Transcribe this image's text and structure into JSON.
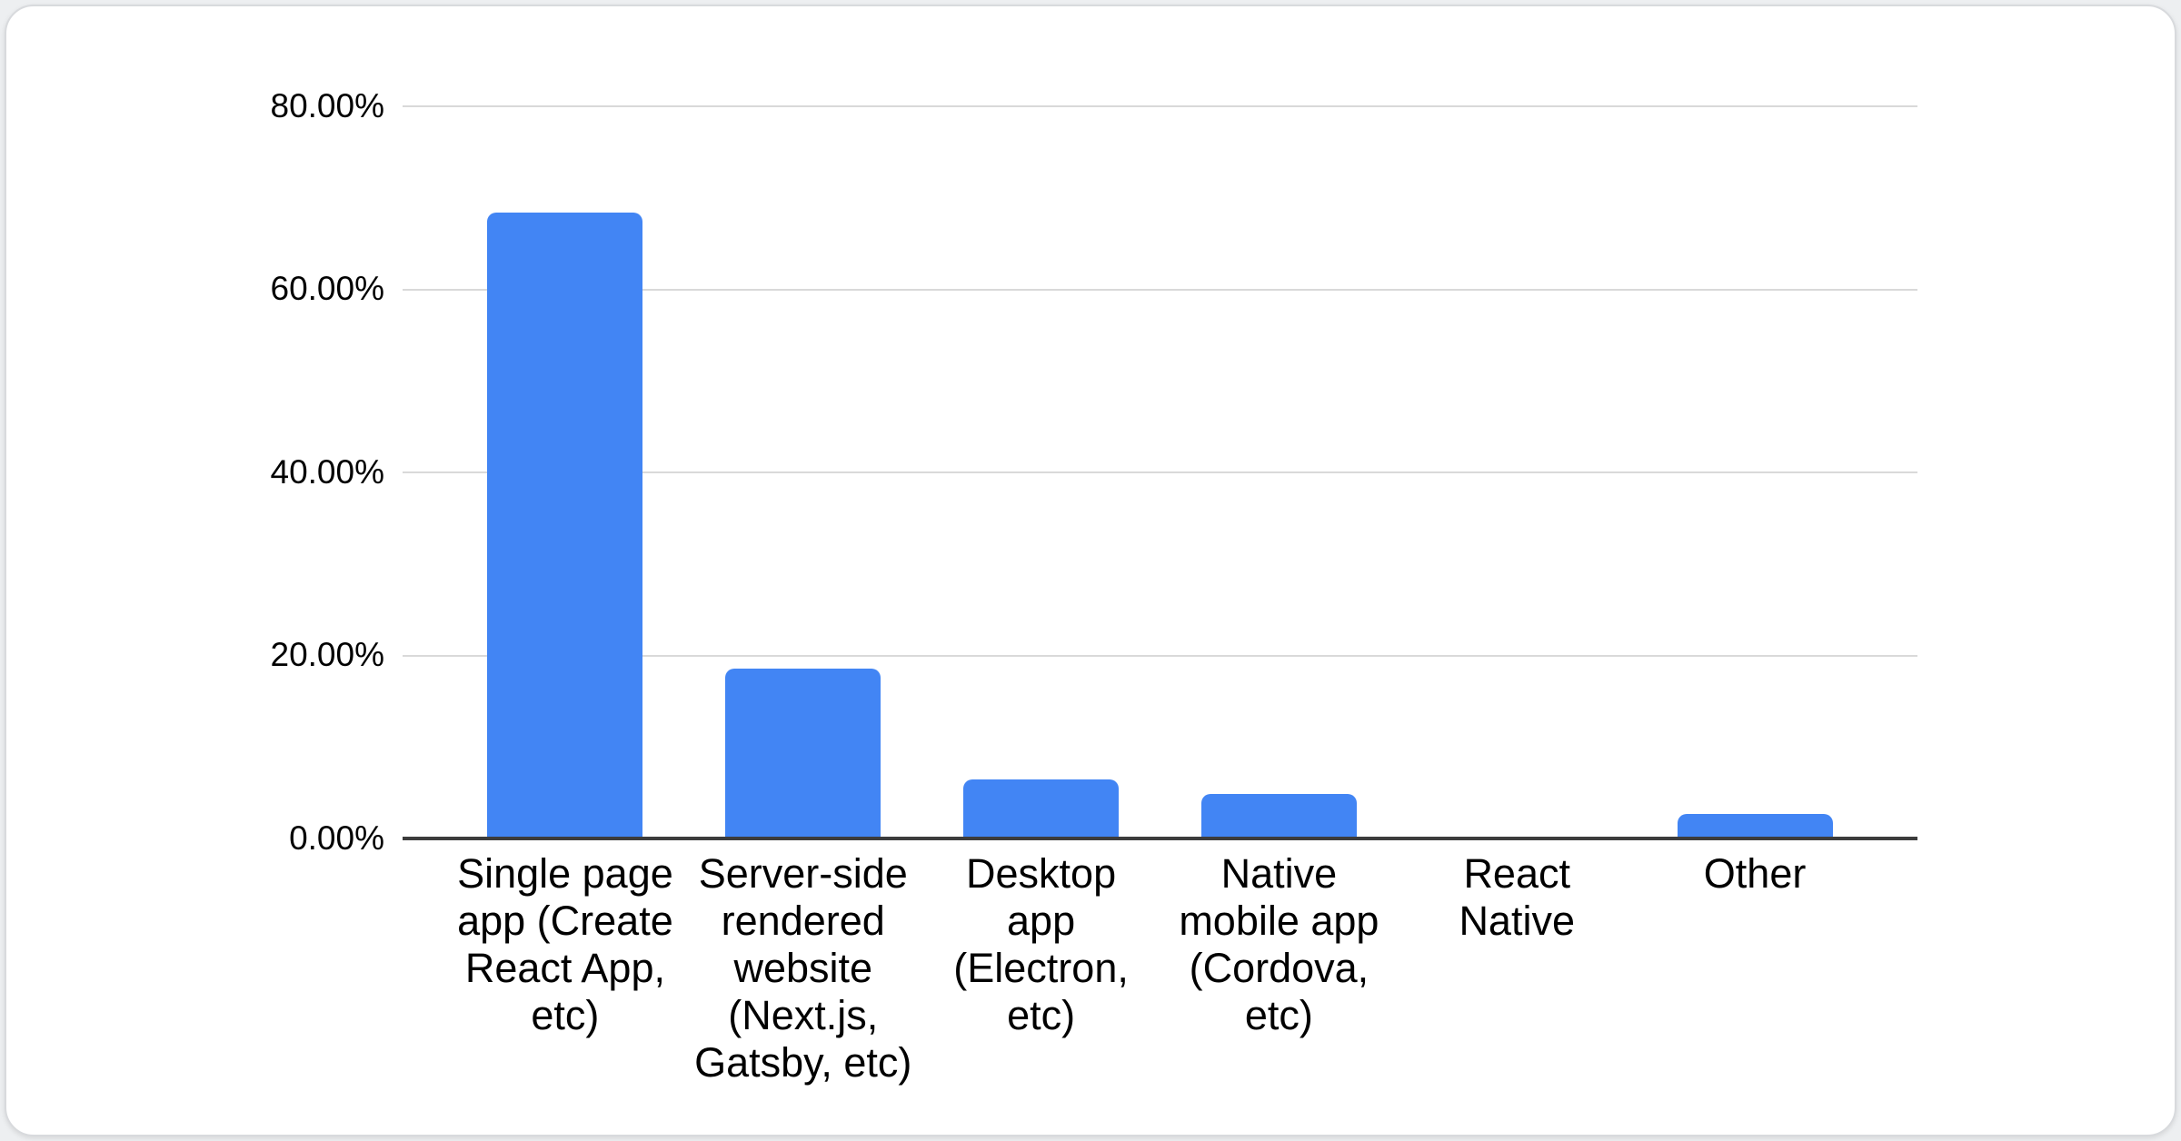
{
  "chart_data": {
    "type": "bar",
    "title": "",
    "categories": [
      "Single page app (Create React App, etc)",
      "Server-side rendered website (Next.js, Gatsby, etc)",
      "Desktop app (Electron, etc)",
      "Native mobile app (Cordova, etc)",
      "React Native",
      "Other"
    ],
    "categories_display": [
      "Single page\napp (Create\nReact App,\netc)",
      "Server-side\nrendered\nwebsite\n(Next.js,\nGatsby, etc)",
      "Desktop\napp\n(Electron,\netc)",
      "Native\nmobile app\n(Cordova,\netc)",
      "React\nNative",
      "Other"
    ],
    "values": [
      68.4,
      18.4,
      6.3,
      4.7,
      0,
      2.5
    ],
    "yticks": [
      "80.00%",
      "60.00%",
      "40.00%",
      "20.00%",
      "0.00%"
    ],
    "ylim": [
      0,
      80
    ],
    "ylabel": "",
    "xlabel": "",
    "grid": "horizontal",
    "legend_position": "none",
    "bar_color": "#4285f4",
    "gridline_color": "#d9d9d9",
    "axis_color": "#3c3c3c",
    "text_color": "#000000"
  }
}
